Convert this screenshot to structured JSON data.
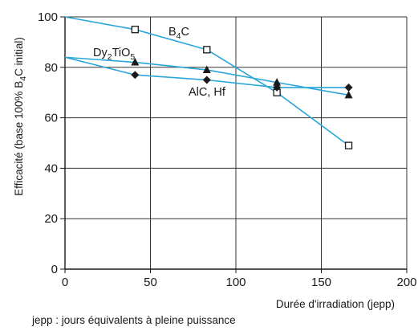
{
  "chart_data": {
    "type": "line",
    "xlabel": "Durée d'irradiation (jepp)",
    "ylabel": {
      "before": "Efficacité (base 100% B",
      "sub": "4",
      "after": "C initial)"
    },
    "xlim": [
      0,
      200
    ],
    "ylim": [
      0,
      100
    ],
    "xticks": [
      0,
      50,
      100,
      150,
      200
    ],
    "yticks": [
      0,
      20,
      40,
      60,
      80,
      100
    ],
    "grid": true,
    "line_color": "#29a6d9",
    "series": [
      {
        "name": {
          "before": "B",
          "sub": "4",
          "after": "C"
        },
        "marker": "open-square",
        "x": [
          0,
          41,
          83,
          124,
          166
        ],
        "y": [
          100,
          95,
          87,
          70,
          49
        ]
      },
      {
        "name": {
          "before": "Dy",
          "sub": "2",
          "mid": "TiO",
          "sub2": "5"
        },
        "marker": "filled-triangle",
        "x": [
          0,
          41,
          83,
          124,
          166
        ],
        "y": [
          84,
          82,
          79,
          74,
          69
        ]
      },
      {
        "name": {
          "before": "AlC, Hf"
        },
        "marker": "filled-diamond",
        "x": [
          0,
          41,
          83,
          124,
          166
        ],
        "y": [
          84,
          77,
          75,
          72,
          72
        ]
      }
    ],
    "footnote": "jepp : jours équivalents à pleine puissance"
  }
}
